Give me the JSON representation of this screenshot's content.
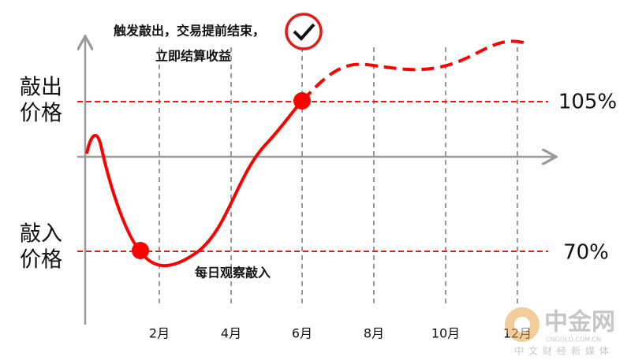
{
  "y_labels": {
    "knock_out": [
      "敲出",
      "价格"
    ],
    "knock_in": [
      "敲入",
      "价格"
    ]
  },
  "levels": {
    "knock_out": "105%",
    "knock_in": "70%"
  },
  "callouts": {
    "trigger": [
      "触发敲出，交易提前结束，",
      "立即结算收益"
    ],
    "observe": "每日观察敲入"
  },
  "x_labels": [
    "2月",
    "4月",
    "6月",
    "8月",
    "10月",
    "12月"
  ],
  "watermark": {
    "brand": "中金网",
    "url": "CNGOLD.COM.CN",
    "tagline": "中文财经新媒体"
  }
}
